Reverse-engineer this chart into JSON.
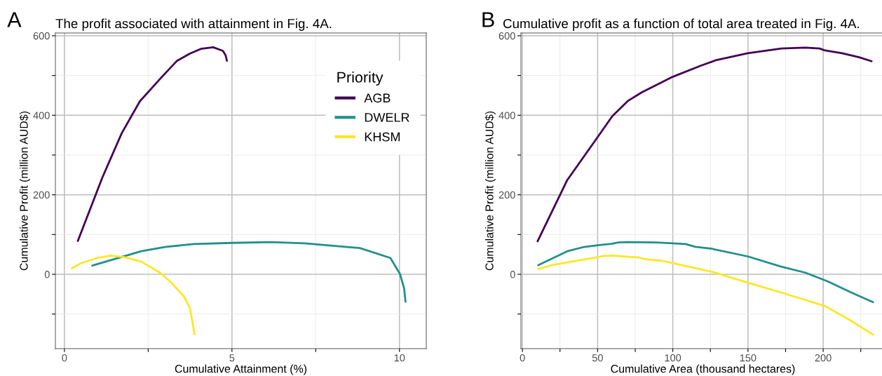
{
  "chart_data": [
    {
      "type": "line",
      "title": "The profit associated with attainment in Fig. 4A.",
      "annotations": [
        "A"
      ],
      "xlabel": "Cumulative Attainment (%)",
      "ylabel": "Cumulative Profit (million AUD$)",
      "legend_title": "Priority",
      "legend": "top right",
      "grid": true,
      "xlim": [
        -0.27,
        10.8
      ],
      "xticks": [
        0,
        {
          "value": 2.5,
          "label": null
        },
        5,
        {
          "value": 7.5,
          "label": null
        },
        10
      ],
      "ylim": [
        -187,
        607
      ],
      "yticks": [
        {
          "value": -100,
          "label": null
        },
        0,
        {
          "value": 100,
          "label": null
        },
        200,
        {
          "value": 300,
          "label": null
        },
        400,
        {
          "value": 500,
          "label": null
        },
        600
      ],
      "series": [
        {
          "name": "AGB",
          "color": "#440154",
          "x": [
            0.4,
            1.13,
            1.71,
            2.25,
            2.87,
            3.36,
            3.74,
            4.07,
            4.44,
            4.73,
            4.81,
            4.85
          ],
          "values": [
            84,
            243,
            355,
            435,
            493,
            537,
            555,
            567,
            571,
            562,
            551,
            537
          ]
        },
        {
          "name": "DWELR",
          "color": "#21908c",
          "x": [
            0.83,
            2.29,
            3.03,
            3.86,
            5.0,
            6.17,
            7.17,
            8.82,
            9.73,
            10.02,
            10.14,
            10.18
          ],
          "values": [
            22,
            58,
            69,
            76,
            79,
            81,
            78,
            66,
            41,
            0,
            -36,
            -69
          ]
        },
        {
          "name": "KHSM",
          "color": "#fde725",
          "x": [
            0.22,
            0.47,
            0.97,
            1.38,
            1.79,
            2.29,
            2.87,
            3.2,
            3.57,
            3.74,
            3.82,
            3.88
          ],
          "values": [
            15,
            27,
            41,
            47,
            43,
            32,
            3,
            -22,
            -56,
            -84,
            -119,
            -151
          ]
        }
      ]
    },
    {
      "type": "line",
      "title": "Cumulative profit as a function of total area treated in Fig. 4A.",
      "annotations": [
        "B"
      ],
      "xlabel": "Cumulative Area (thousand hectares)",
      "ylabel": "Cumulative Profit (million AUD$)",
      "legend": false,
      "grid": true,
      "xlim": [
        -1,
        241
      ],
      "xticks": [
        0,
        {
          "value": 25,
          "label": null
        },
        50,
        {
          "value": 75,
          "label": null
        },
        100,
        {
          "value": 125,
          "label": null
        },
        150,
        {
          "value": 175,
          "label": null
        },
        200,
        {
          "value": 225,
          "label": null
        }
      ],
      "ylim": [
        -187,
        607
      ],
      "yticks": [
        {
          "value": -100,
          "label": null
        },
        0,
        {
          "value": 100,
          "label": null
        },
        200,
        {
          "value": 300,
          "label": null
        },
        400,
        {
          "value": 500,
          "label": null
        },
        600
      ],
      "series": [
        {
          "color": "#440154",
          "x": [
            10.1,
            29.8,
            40.1,
            50.0,
            59.8,
            70.1,
            79.5,
            100.1,
            118.8,
            129.1,
            149.8,
            172.3,
            188.2,
            197.6,
            201.3,
            212.6,
            223.9,
            232.2
          ],
          "values": [
            83,
            237,
            292,
            345,
            398,
            436,
            458,
            497,
            525,
            539,
            556,
            568,
            570,
            568,
            563,
            556,
            546,
            536
          ]
        },
        {
          "color": "#21908c",
          "x": [
            10.5,
            29.8,
            40.1,
            50,
            59.8,
            63.5,
            70.1,
            88.8,
            100.1,
            108.5,
            115.1,
            126.3,
            149.8,
            171.3,
            188.2,
            203.2,
            218.2,
            233.2
          ],
          "values": [
            23,
            58,
            68,
            73,
            77,
            80,
            81,
            80,
            78,
            76,
            69,
            64,
            45,
            20,
            4,
            -18,
            -45,
            -70
          ]
        },
        {
          "color": "#fde725",
          "x": [
            10.5,
            19.5,
            29.8,
            50,
            54.2,
            59.8,
            77.6,
            81.3,
            92.6,
            100.1,
            126.3,
            149.8,
            171.3,
            193.8,
            201.3,
            218.2,
            233.2
          ],
          "values": [
            13,
            23,
            30,
            43,
            46,
            47,
            42,
            38,
            34,
            28,
            6,
            -21,
            -45,
            -71,
            -80,
            -116,
            -152
          ]
        }
      ]
    }
  ]
}
